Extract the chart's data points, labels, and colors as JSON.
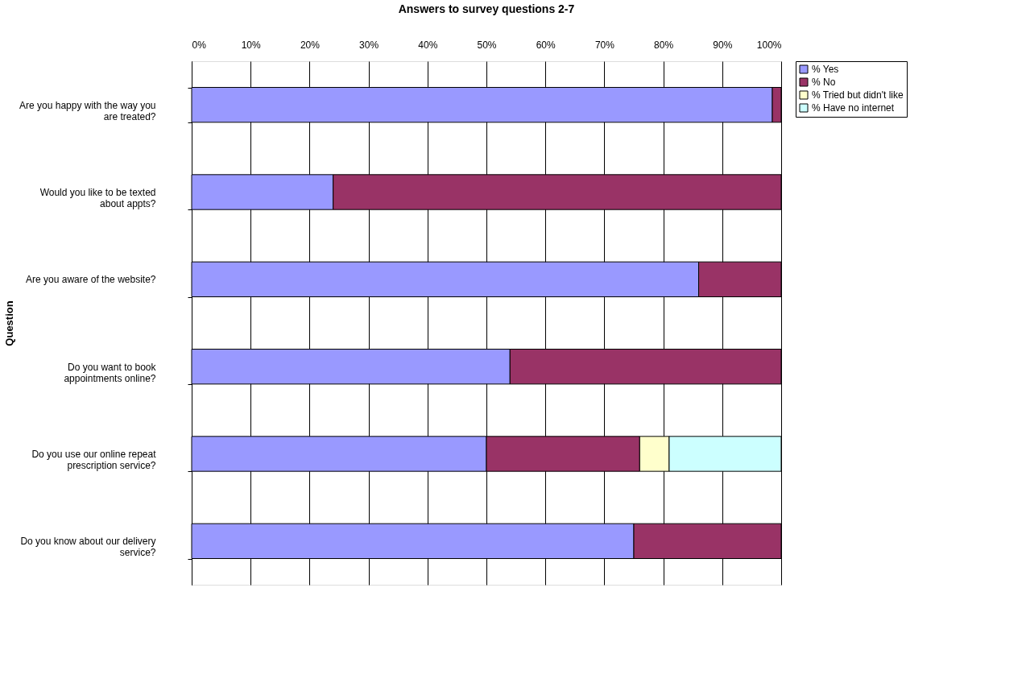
{
  "chart_data": {
    "type": "bar",
    "orientation": "horizontal",
    "stacked": true,
    "title": "Answers to survey questions 2-7",
    "ylabel": "Question",
    "categories": [
      "Are you happy with the way you are treated?",
      "Would you like to be texted about appts?",
      "Are you aware of the website?",
      "Do you want to book appointments online?",
      "Do you use our online repeat prescription service?",
      "Do you know about our delivery service?"
    ],
    "series": [
      {
        "name": "% Yes",
        "color": "#9999ff",
        "values": [
          98.5,
          24,
          86,
          54,
          50,
          75
        ]
      },
      {
        "name": "% No",
        "color": "#993366",
        "values": [
          1.5,
          76,
          14,
          46,
          26,
          25
        ]
      },
      {
        "name": "% Tried but didn't like",
        "color": "#ffffcc",
        "values": [
          null,
          null,
          null,
          null,
          5,
          null
        ]
      },
      {
        "name": "% Have no internet",
        "color": "#ccffff",
        "values": [
          null,
          null,
          null,
          null,
          19,
          null
        ]
      }
    ],
    "xlim": [
      0,
      100
    ],
    "xticks": [
      {
        "value": 0,
        "label": "0%"
      },
      {
        "value": 10,
        "label": "10%"
      },
      {
        "value": 20,
        "label": "20%"
      },
      {
        "value": 30,
        "label": "30%"
      },
      {
        "value": 40,
        "label": "40%"
      },
      {
        "value": 50,
        "label": "50%"
      },
      {
        "value": 60,
        "label": "60%"
      },
      {
        "value": 70,
        "label": "70%"
      },
      {
        "value": 80,
        "label": "80%"
      },
      {
        "value": 90,
        "label": "90%"
      },
      {
        "value": 100,
        "label": "100%"
      }
    ],
    "grid": "x",
    "legend": "right"
  }
}
